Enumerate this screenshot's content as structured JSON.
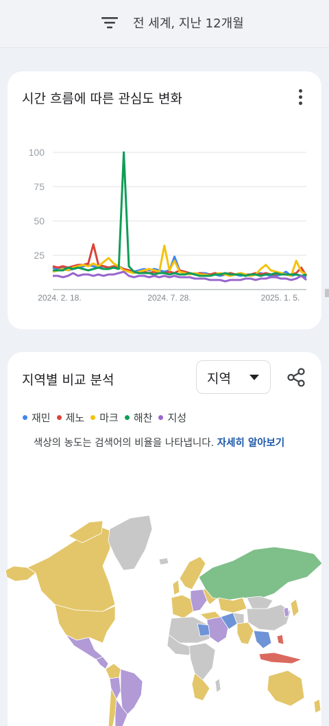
{
  "topbar": {
    "filter_label": "전 세계, 지난 12개월"
  },
  "interest_over_time": {
    "title": "시간 흐름에 따른 관심도 변화",
    "menu_icon": "more-vert-icon"
  },
  "chart_data": {
    "type": "line",
    "title": "시간 흐름에 따른 관심도 변화",
    "xlabel": "",
    "ylabel": "",
    "ylim": [
      0,
      100
    ],
    "yticks": [
      "100",
      "75",
      "50",
      "25"
    ],
    "xtick_labels": [
      "2024. 2. 18.",
      "2024. 7. 28.",
      "2025. 1. 5."
    ],
    "grid": true,
    "series": [
      {
        "name": "재민",
        "color": "#4285f4",
        "values": [
          16,
          15,
          16,
          14,
          15,
          16,
          17,
          18,
          17,
          16,
          17,
          16,
          16,
          17,
          15,
          14,
          13,
          14,
          15,
          14,
          15,
          14,
          13,
          14,
          24,
          14,
          13,
          12,
          11,
          12,
          12,
          11,
          11,
          10,
          11,
          12,
          11,
          10,
          11,
          10,
          11,
          12,
          11,
          10,
          10,
          11,
          13,
          10,
          11,
          10,
          9
        ]
      },
      {
        "name": "제노",
        "color": "#db4437",
        "values": [
          17,
          16,
          17,
          16,
          17,
          18,
          18,
          19,
          33,
          18,
          17,
          16,
          17,
          16,
          15,
          14,
          13,
          12,
          13,
          12,
          13,
          12,
          12,
          13,
          12,
          14,
          13,
          12,
          11,
          12,
          11,
          11,
          12,
          11,
          11,
          12,
          11,
          12,
          11,
          11,
          12,
          11,
          12,
          11,
          11,
          12,
          11,
          11,
          12,
          16,
          10
        ]
      },
      {
        "name": "마크",
        "color": "#f4c20d",
        "values": [
          13,
          14,
          15,
          14,
          16,
          17,
          18,
          17,
          19,
          17,
          20,
          23,
          19,
          17,
          14,
          13,
          12,
          13,
          14,
          15,
          14,
          13,
          32,
          14,
          21,
          13,
          12,
          11,
          12,
          11,
          11,
          10,
          11,
          12,
          11,
          10,
          11,
          12,
          11,
          10,
          11,
          15,
          18,
          14,
          13,
          12,
          11,
          10,
          21,
          13,
          11
        ]
      },
      {
        "name": "해찬",
        "color": "#0f9d58",
        "values": [
          14,
          14,
          14,
          16,
          15,
          16,
          15,
          14,
          15,
          16,
          15,
          15,
          16,
          15,
          100,
          17,
          13,
          12,
          12,
          12,
          11,
          12,
          12,
          11,
          12,
          11,
          11,
          12,
          11,
          10,
          10,
          10,
          11,
          11,
          12,
          11,
          11,
          11,
          10,
          11,
          11,
          10,
          11,
          11,
          12,
          11,
          11,
          11,
          11,
          10,
          11
        ]
      },
      {
        "name": "지성",
        "color": "#9966cc",
        "values": [
          10,
          10,
          9,
          10,
          12,
          10,
          11,
          11,
          10,
          11,
          10,
          11,
          11,
          12,
          13,
          10,
          9,
          10,
          10,
          9,
          10,
          9,
          10,
          9,
          10,
          9,
          9,
          9,
          8,
          8,
          8,
          7,
          7,
          7,
          6,
          7,
          7,
          7,
          8,
          8,
          7,
          8,
          8,
          9,
          9,
          8,
          8,
          7,
          8,
          10,
          7
        ]
      }
    ]
  },
  "compare_region": {
    "title": "지역별 비교 분석",
    "dropdown_value": "지역",
    "share_icon": "share-icon",
    "legend": [
      {
        "label": "재민",
        "color": "#4285f4"
      },
      {
        "label": "제노",
        "color": "#db4437"
      },
      {
        "label": "마크",
        "color": "#f4c20d"
      },
      {
        "label": "해찬",
        "color": "#0f9d58"
      },
      {
        "label": "지성",
        "color": "#9966cc"
      }
    ],
    "note": "색상의 농도는 검색어의 비율을 나타냅니다.",
    "learn_more": "자세히 알아보기"
  }
}
